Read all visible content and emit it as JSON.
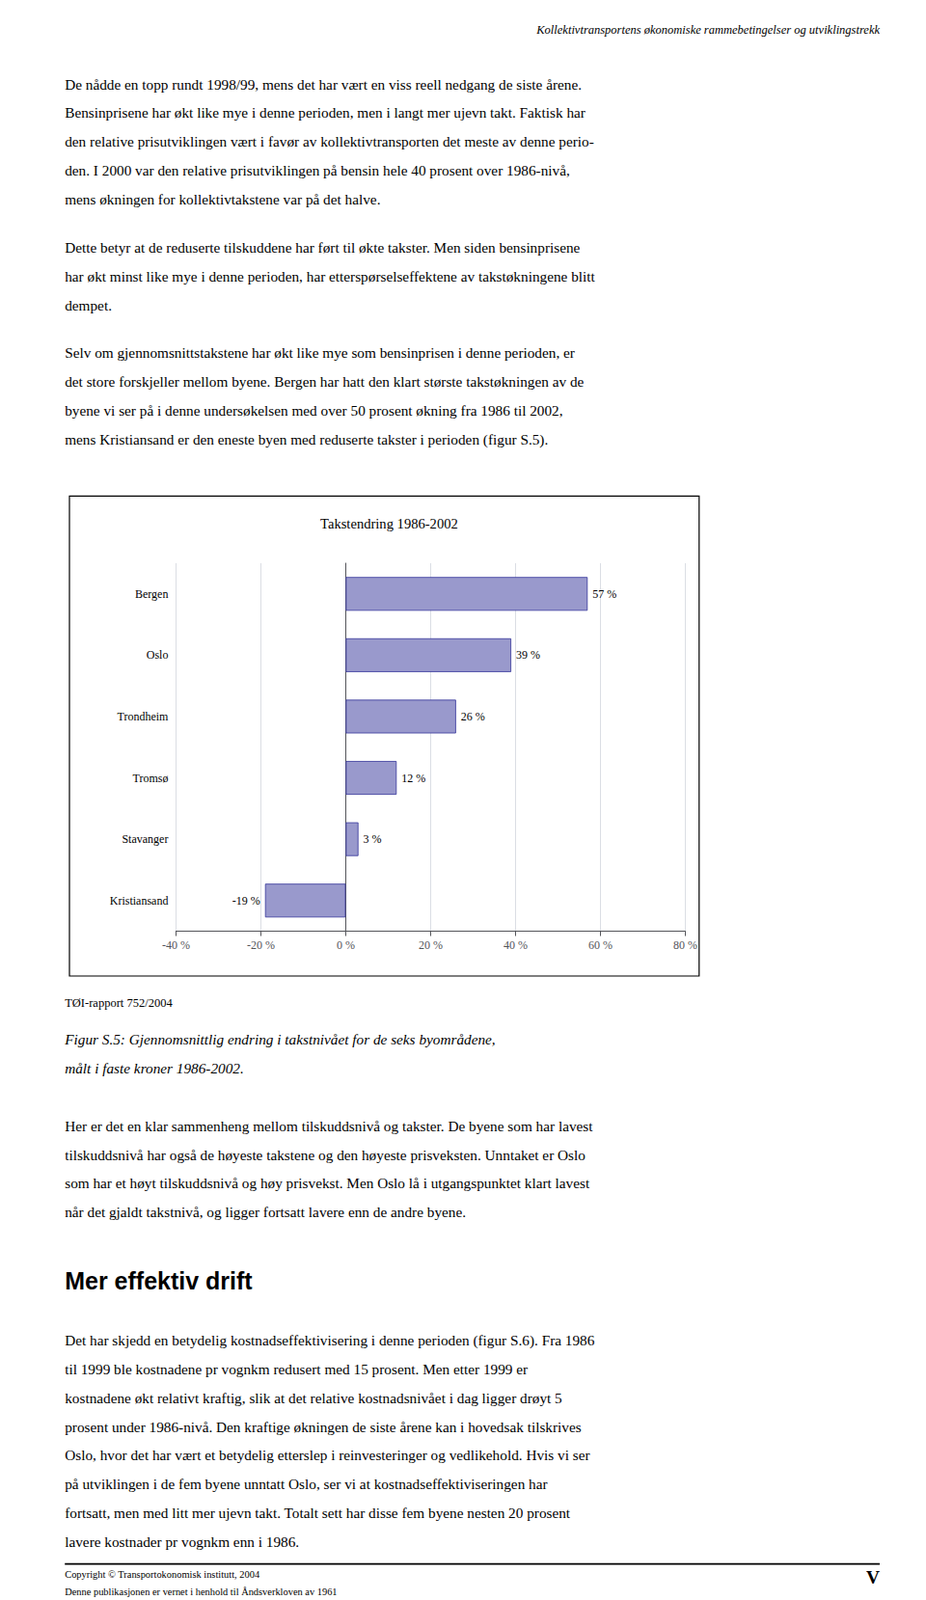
{
  "chart_data": {
    "type": "bar",
    "title": "Takstendring 1986-2002",
    "orientation": "horizontal",
    "categories": [
      "Bergen",
      "Oslo",
      "Trondheim",
      "Tromsø",
      "Stavanger",
      "Kristiansand"
    ],
    "values": [
      57,
      39,
      26,
      12,
      3,
      -19
    ],
    "value_labels": [
      "57 %",
      "39 %",
      "26 %",
      "12 %",
      "3 %",
      "-19 %"
    ],
    "data_labels": true,
    "color": "#9999cc",
    "xlim": [
      -40,
      80
    ],
    "xticks": [
      {
        "value": -40,
        "label": "-40 %"
      },
      {
        "value": -20,
        "label": "-20 %"
      },
      {
        "value": 0,
        "label": "0 %"
      },
      {
        "value": 20,
        "label": "20 %"
      },
      {
        "value": 40,
        "label": "40 %"
      },
      {
        "value": 60,
        "label": "60 %"
      },
      {
        "value": 80,
        "label": "80 %"
      }
    ],
    "grid": true,
    "annotations": {
      "header": "Kollektivtransportens økonomiske rammebetingelser og utviklingstrekk",
      "paragraphs": [
        [
          "De nådde en topp rundt 1998/99, mens det har vært en viss reell nedgang de siste årene.",
          "Bensinprisene har økt like mye i denne perioden, men i langt mer ujevn takt. Faktisk har",
          "den relative prisutviklingen vært i favør av kollektivtransporten det meste av denne perio-",
          "den. I 2000 var den relative prisutviklingen på bensin hele 40 prosent over 1986-nivå,",
          "mens økningen for kollektivtakstene var på det halve."
        ],
        [
          "Dette betyr at de reduserte tilskuddene har ført til økte takster. Men siden bensinprisene",
          "har økt minst like mye i denne perioden, har etterspørselseffektene av takstøkningene blitt",
          "dempet."
        ],
        [
          "Selv om gjennomsnittstakstene har økt like mye som bensinprisen i denne perioden, er",
          "det store forskjeller mellom byene. Bergen har hatt den klart største takstøkningen av de",
          "byene vi ser på i denne undersøkelsen med over 50 prosent økning fra 1986 til 2002,",
          "mens Kristiansand er den eneste byen med reduserte takster i perioden (figur S.5)."
        ]
      ],
      "source": "TØI-rapport 752/2004",
      "caption": [
        "Figur S.5: Gjennomsnittlig endring i takstnivået for de seks byområdene,",
        "målt i faste kroner 1986-2002."
      ],
      "paragraph": [
        "Her er det en klar sammenheng mellom tilskuddsnivå og takster. De byene som har lavest",
        "tilskuddsnivå har også de høyeste takstene og den høyeste prisveksten. Unntaket er Oslo",
        "som har et høyt tilskuddsnivå og høy prisvekst. Men Oslo lå i utgangspunktet klart lavest",
        "når det gjaldt takstnivå, og ligger fortsatt lavere enn de andre byene."
      ],
      "section_header": "Mer effektiv drift",
      "section_paragraph": [
        "Det har skjedd en betydelig kostnadseffektivisering i denne perioden (figur S.6). Fra 1986",
        "til 1999 ble kostnadene pr vognkm redusert med 15 prosent. Men etter 1999 er",
        "kostnadene økt relativt kraftig, slik at det relative kostnadsnivået i dag ligger drøyt 5",
        "prosent under 1986-nivå. Den kraftige økningen de siste årene kan i hovedsak tilskrives",
        "Oslo, hvor det har vært et betydelig etterslep i reinvesteringer og vedlikehold. Hvis vi ser",
        "på utviklingen i de fem byene unntatt Oslo, ser vi at kostnadseffektiviseringen har",
        "fortsatt, men med litt mer ujevn takt. Totalt sett har disse fem byene nesten 20 prosent",
        "lavere kostnader pr vognkm enn i 1986."
      ],
      "footer": [
        "Copyright © Transportokonomisk institutt, 2004",
        "Denne publikasjonen er vernet i henhold til Åndsverkloven av 1961"
      ],
      "page_number": "V"
    }
  }
}
